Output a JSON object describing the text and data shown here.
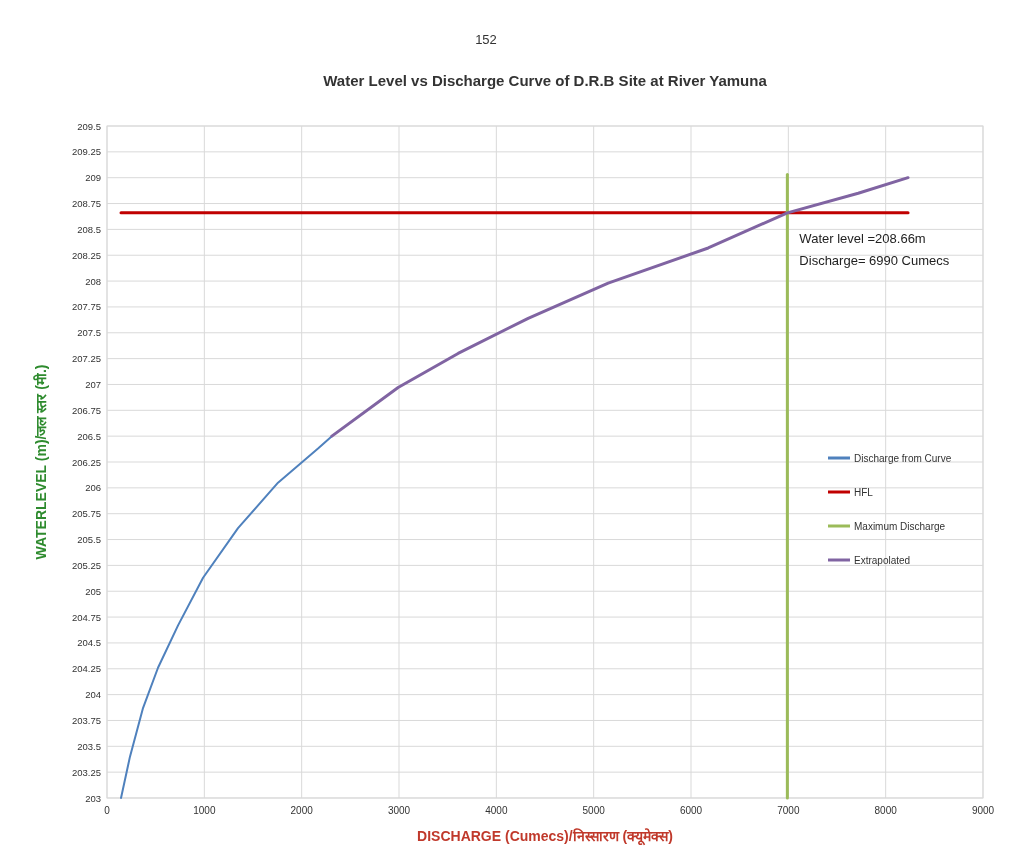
{
  "chart_data": {
    "type": "line",
    "title": "Water Level vs Discharge Curve of D.R.B Site at River Yamuna",
    "xlabel": "DISCHARGE (Cumecs)/निस्सारण (क्यूमेक्स)",
    "ylabel": "WATERLEVEL (m)/जल स्तर (मी.)",
    "xlim": [
      0,
      9000
    ],
    "xticks": [
      0,
      1000,
      2000,
      3000,
      4000,
      5000,
      6000,
      7000,
      8000,
      9000
    ],
    "ylim": [
      203,
      209.5
    ],
    "yticks": [
      203,
      203.25,
      203.5,
      203.75,
      204,
      204.25,
      204.5,
      204.75,
      205,
      205.25,
      205.5,
      205.75,
      206,
      206.25,
      206.5,
      206.75,
      207,
      207.25,
      207.5,
      207.75,
      208,
      208.25,
      208.5,
      208.75,
      209,
      209.25,
      209.5
    ],
    "grid": true,
    "legend": "right",
    "marker": "none",
    "series": [
      {
        "name": "Discharge from Curve",
        "color": "#4f81bd",
        "x": [
          144,
          236,
          370,
          524,
          730,
          987,
          1346,
          1757,
          2168,
          2310
        ],
        "values": [
          203,
          203.4,
          203.87,
          204.26,
          204.67,
          205.13,
          205.61,
          206.05,
          206.38,
          206.5
        ]
      },
      {
        "name": "HFL",
        "color": "#c00000",
        "x": [
          144,
          8230
        ],
        "values": [
          208.66,
          208.66
        ]
      },
      {
        "name": "Maximum Discharge",
        "color": "#9bbb59",
        "x": [
          6990,
          6990
        ],
        "values": [
          203,
          209.03
        ]
      },
      {
        "name": "Extrapolated",
        "color": "#8064a2",
        "x": [
          2310,
          2991,
          3607,
          4327,
          5149,
          6177,
          6990,
          7718,
          8230
        ],
        "values": [
          206.5,
          206.97,
          207.3,
          207.64,
          207.98,
          208.32,
          208.66,
          208.85,
          209
        ]
      }
    ],
    "annotations": [
      "152",
      {
        "text": "Water level =208.66m\nDischarge= 6990 Cumecs",
        "x": 6990,
        "y": 208.66
      }
    ]
  }
}
